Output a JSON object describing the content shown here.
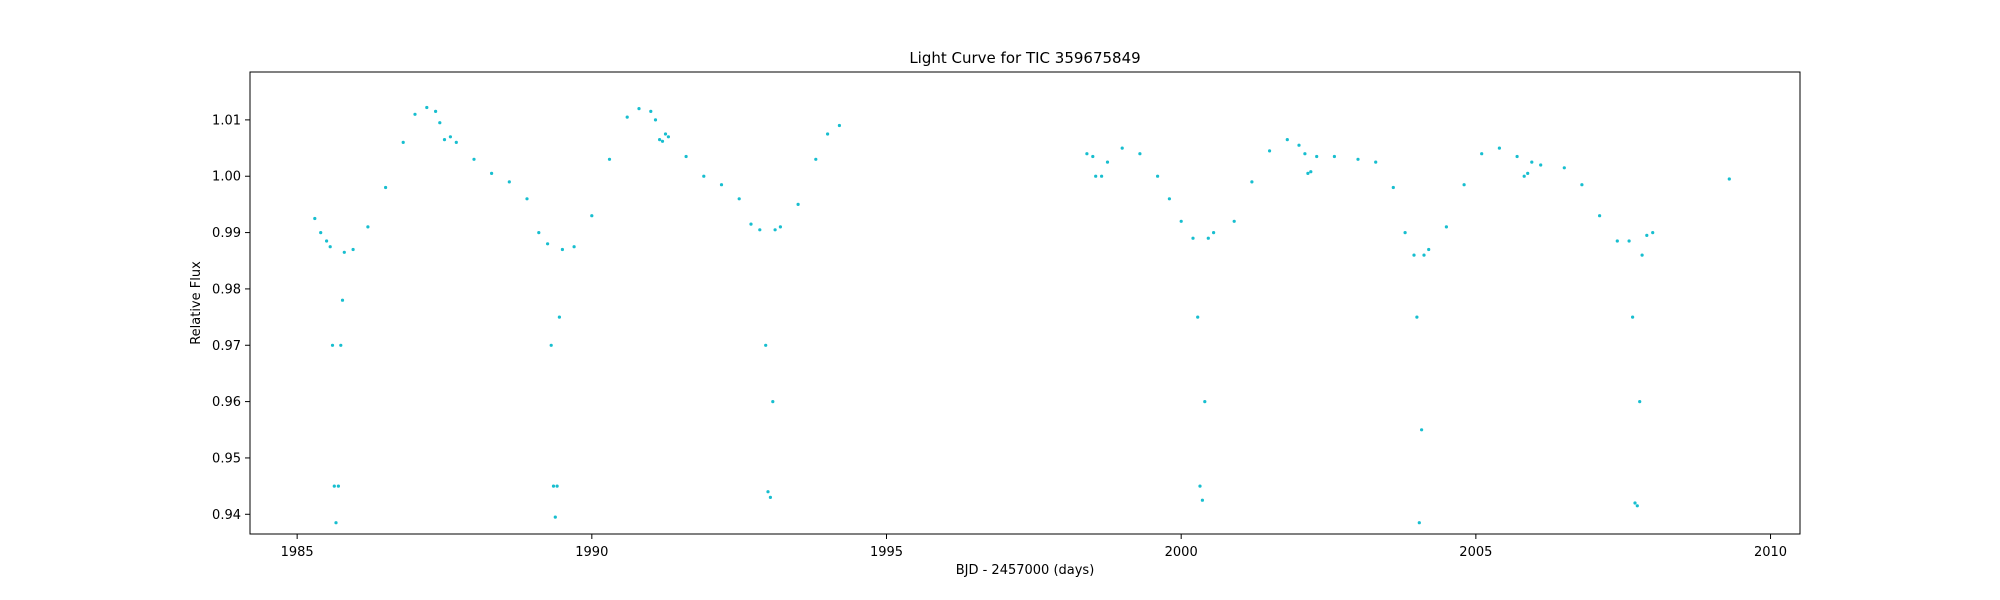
{
  "chart_data": {
    "type": "scatter",
    "title": "Light Curve for TIC 359675849",
    "xlabel": "BJD - 2457000 (days)",
    "ylabel": "Relative Flux",
    "xlim": [
      1984.2,
      2010.5
    ],
    "ylim": [
      0.9365,
      1.0185
    ],
    "xticks": [
      1985,
      1990,
      1995,
      2000,
      2005,
      2010
    ],
    "yticks": [
      0.94,
      0.95,
      0.96,
      0.97,
      0.98,
      0.99,
      1.0,
      1.01
    ],
    "ytick_labels": [
      "0.94",
      "0.95",
      "0.96",
      "0.97",
      "0.98",
      "0.99",
      "1.00",
      "1.01"
    ],
    "grid": false,
    "marker_color": "#17becf",
    "series": [
      {
        "x": [
          1985.3,
          1985.4,
          1985.5,
          1985.56,
          1985.6,
          1985.63,
          1985.66,
          1985.7,
          1985.74,
          1985.77,
          1985.8,
          1985.95,
          1986.2,
          1986.5,
          1986.8,
          1987.0,
          1987.2,
          1987.35,
          1987.42,
          1987.5,
          1987.6,
          1987.7,
          1988.0,
          1988.3,
          1988.6,
          1988.9,
          1989.1,
          1989.25,
          1989.31,
          1989.35,
          1989.38,
          1989.41,
          1989.45,
          1989.5,
          1989.7,
          1990.0,
          1990.3,
          1990.6,
          1990.8,
          1991.0,
          1991.08,
          1991.15,
          1991.2,
          1991.25,
          1991.3,
          1991.6,
          1991.9,
          1992.2,
          1992.5,
          1992.7,
          1992.85,
          1992.95,
          1992.99,
          1993.03,
          1993.07,
          1993.11,
          1993.2,
          1993.5,
          1993.8,
          1994.0,
          1994.2,
          1998.4,
          1998.5,
          1998.55,
          1998.65,
          1998.75,
          1999.0,
          1999.3,
          1999.6,
          1999.8,
          2000.0,
          2000.2,
          2000.28,
          2000.32,
          2000.36,
          2000.4,
          2000.46,
          2000.55,
          2000.9,
          2001.2,
          2001.5,
          2001.8,
          2002.0,
          2002.1,
          2002.15,
          2002.2,
          2002.3,
          2002.6,
          2003.0,
          2003.3,
          2003.6,
          2003.8,
          2003.95,
          2004.0,
          2004.04,
          2004.08,
          2004.12,
          2004.2,
          2004.5,
          2004.8,
          2005.1,
          2005.4,
          2005.7,
          2005.82,
          2005.88,
          2005.95,
          2006.1,
          2006.5,
          2006.8,
          2007.1,
          2007.4,
          2007.6,
          2007.66,
          2007.7,
          2007.74,
          2007.78,
          2007.82,
          2007.9,
          2008.0,
          2009.3
        ],
        "y": [
          0.9925,
          0.99,
          0.9885,
          0.9875,
          0.97,
          0.945,
          0.9385,
          0.945,
          0.97,
          0.978,
          0.9865,
          0.987,
          0.991,
          0.998,
          1.006,
          1.011,
          1.0122,
          1.0115,
          1.0095,
          1.0065,
          1.007,
          1.006,
          1.003,
          1.0005,
          0.999,
          0.996,
          0.99,
          0.988,
          0.97,
          0.945,
          0.9395,
          0.945,
          0.975,
          0.987,
          0.9875,
          0.993,
          1.003,
          1.0105,
          1.012,
          1.0115,
          1.01,
          1.0065,
          1.0062,
          1.0075,
          1.007,
          1.0035,
          1.0,
          0.9985,
          0.996,
          0.9915,
          0.9905,
          0.97,
          0.944,
          0.943,
          0.96,
          0.9905,
          0.991,
          0.995,
          1.003,
          1.0075,
          1.009,
          1.004,
          1.0035,
          1.0,
          1.0,
          1.0025,
          1.005,
          1.004,
          1.0,
          0.996,
          0.992,
          0.989,
          0.975,
          0.945,
          0.9425,
          0.96,
          0.989,
          0.99,
          0.992,
          0.999,
          1.0045,
          1.0065,
          1.0055,
          1.004,
          1.0005,
          1.0008,
          1.0035,
          1.0035,
          1.003,
          1.0025,
          0.998,
          0.99,
          0.986,
          0.975,
          0.9385,
          0.955,
          0.986,
          0.987,
          0.991,
          0.9985,
          1.004,
          1.005,
          1.0035,
          1.0,
          1.0005,
          1.0025,
          1.002,
          1.0015,
          0.9985,
          0.993,
          0.9885,
          0.9885,
          0.975,
          0.942,
          0.9415,
          0.96,
          0.986,
          0.9895,
          0.99,
          0.9995
        ]
      }
    ]
  }
}
